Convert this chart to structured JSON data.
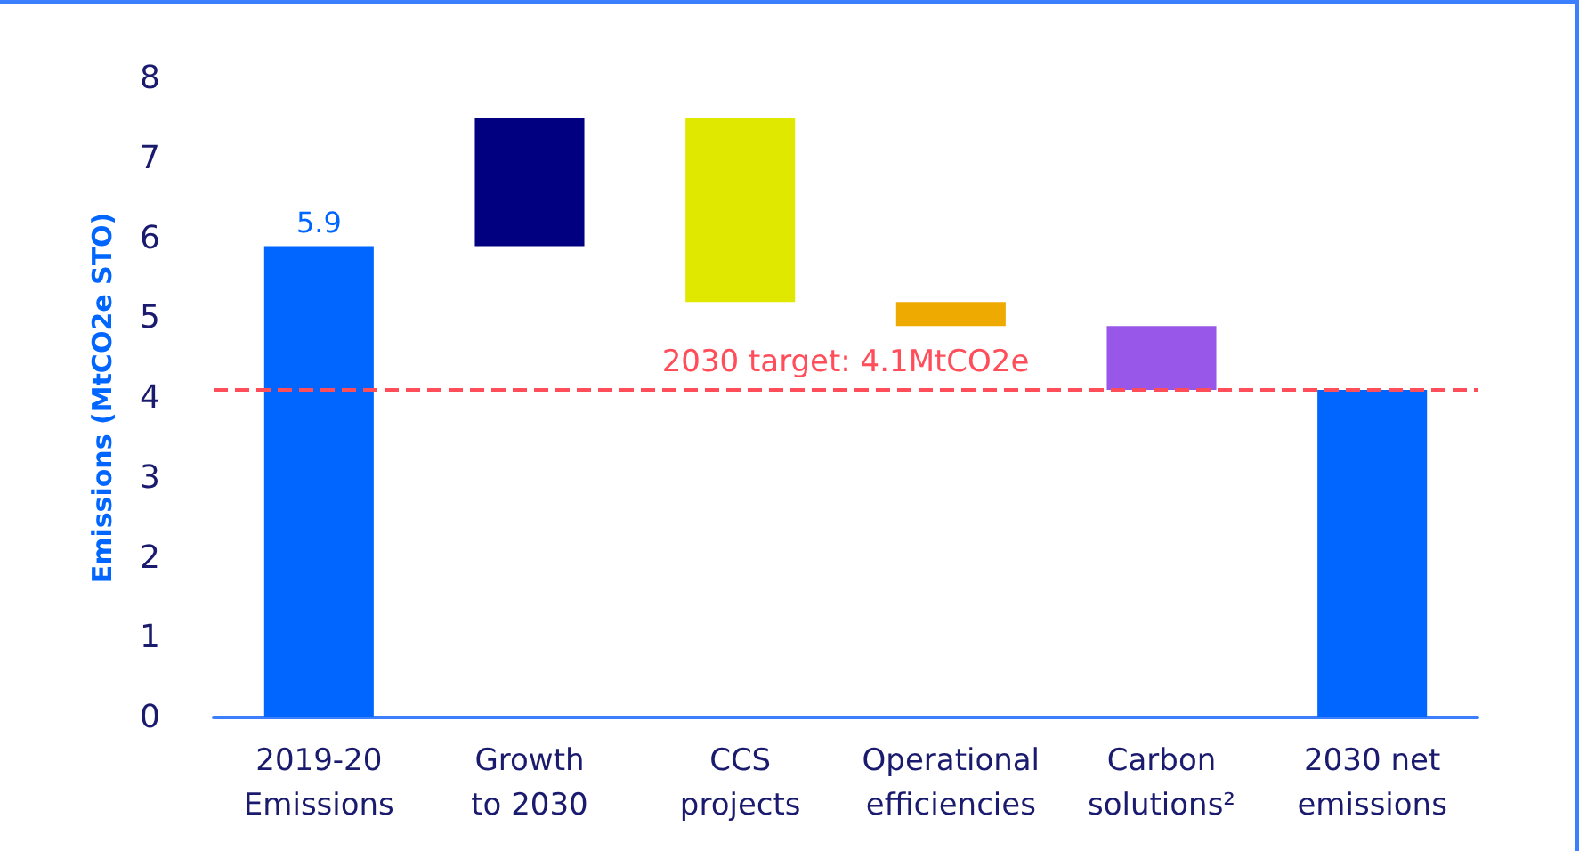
{
  "chart_data": {
    "type": "bar",
    "ylabel": "Emissions (MtCO2e STO)",
    "categories": [
      "2019-20\nEmissions",
      "Growth\nto 2030",
      "CCS\nprojects",
      "Operational\nefficiencies",
      "Carbon\nsolutions²",
      "2030 net\nemissions"
    ],
    "values": [
      5.9,
      1.6,
      -2.3,
      -0.3,
      -0.8,
      4.1
    ],
    "base": [
      0,
      5.9,
      7.5,
      5.2,
      4.9,
      0
    ],
    "colors": [
      "#0066ff",
      "#000080",
      "#e0e800",
      "#eeaa00",
      "#9857e8",
      "#0066ff"
    ],
    "value_labels": [
      "5.9",
      null,
      null,
      null,
      null,
      null
    ],
    "ylim": [
      0,
      8
    ],
    "yticks": [
      0,
      1,
      2,
      3,
      4,
      5,
      6,
      7,
      8
    ],
    "ref_lines": [
      {
        "axis": "y",
        "value": 4.1,
        "label": "2030 target: 4.1MtCO2e",
        "color": "#ff4d5a",
        "line_style": "dashed"
      }
    ]
  }
}
